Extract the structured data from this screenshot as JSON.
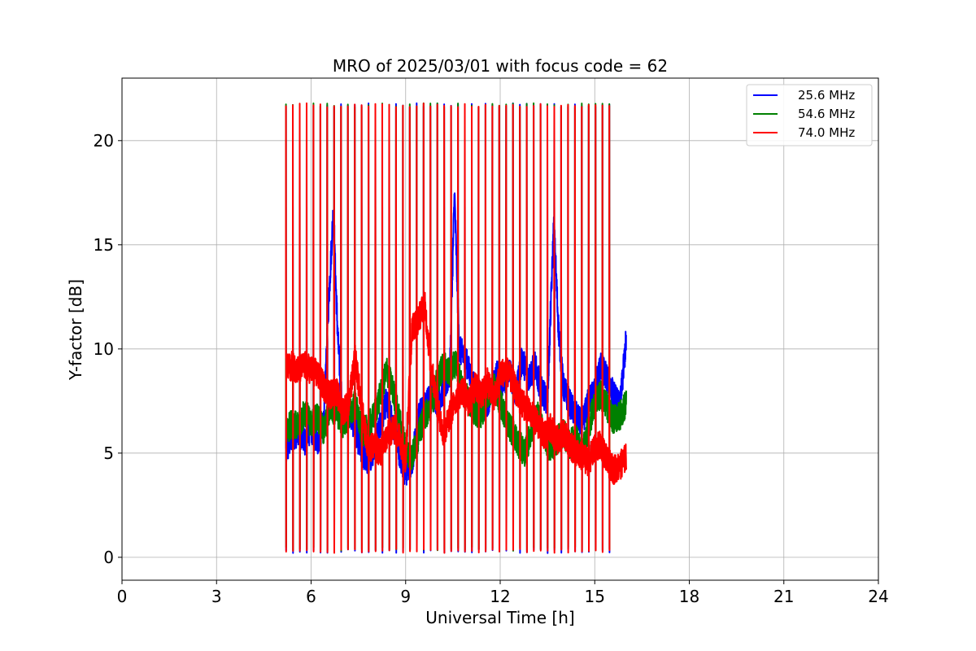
{
  "chart_data": {
    "type": "line",
    "title": "MRO of 2025/03/01 with focus code = 62",
    "xlabel": "Universal Time [h]",
    "ylabel": "Y-factor [dB]",
    "xlim": [
      0,
      24
    ],
    "ylim": [
      -1.1,
      23.0
    ],
    "xticks": [
      0,
      3,
      6,
      9,
      12,
      15,
      18,
      21,
      24
    ],
    "yticks": [
      0,
      5,
      10,
      15,
      20
    ],
    "grid": true,
    "legend_position": "top-right",
    "cal_cycle": {
      "start_h": 5.2,
      "period_h": 0.2183,
      "count": 49,
      "high_db": 21.7,
      "low_db": 0.2
    },
    "series": [
      {
        "name": "25.6 MHz",
        "color": "#0000ff",
        "x": [
          5.2,
          5.4,
          5.6,
          5.8,
          6.0,
          6.2,
          6.4,
          6.55,
          6.7,
          6.85,
          7.0,
          7.2,
          7.4,
          7.6,
          7.8,
          8.0,
          8.2,
          8.4,
          8.6,
          8.8,
          9.0,
          9.2,
          9.4,
          9.6,
          9.8,
          10.0,
          10.2,
          10.4,
          10.55,
          10.7,
          10.9,
          11.1,
          11.3,
          11.5,
          11.7,
          11.9,
          12.1,
          12.3,
          12.5,
          12.7,
          12.9,
          13.1,
          13.3,
          13.5,
          13.7,
          13.85,
          14.0,
          14.2,
          14.4,
          14.6,
          14.8,
          15.0,
          15.2,
          15.4,
          15.6,
          15.8,
          16.0
        ],
        "y": [
          5.0,
          5.8,
          6.0,
          5.6,
          6.2,
          5.5,
          6.5,
          12.0,
          16.5,
          10.5,
          6.8,
          7.0,
          6.2,
          5.0,
          4.6,
          5.2,
          6.5,
          7.5,
          6.4,
          5.0,
          4.0,
          4.5,
          6.8,
          7.2,
          7.8,
          7.5,
          8.0,
          8.8,
          17.5,
          10.0,
          9.5,
          8.5,
          8.0,
          7.2,
          7.8,
          8.8,
          8.4,
          9.0,
          7.8,
          9.5,
          8.6,
          9.2,
          8.0,
          7.5,
          16.0,
          11.0,
          8.2,
          7.4,
          6.8,
          6.4,
          7.5,
          8.0,
          9.2,
          8.6,
          7.8,
          7.2,
          10.5
        ]
      },
      {
        "name": "54.6 MHz",
        "color": "#008000",
        "x": [
          5.2,
          5.4,
          5.6,
          5.8,
          6.0,
          6.2,
          6.4,
          6.6,
          6.8,
          7.0,
          7.2,
          7.4,
          7.6,
          7.8,
          8.0,
          8.2,
          8.4,
          8.6,
          8.8,
          9.0,
          9.2,
          9.4,
          9.6,
          9.8,
          10.0,
          10.2,
          10.4,
          10.6,
          10.8,
          11.0,
          11.2,
          11.4,
          11.6,
          11.8,
          12.0,
          12.2,
          12.4,
          12.6,
          12.8,
          13.0,
          13.2,
          13.4,
          13.6,
          13.8,
          14.0,
          14.2,
          14.4,
          14.6,
          14.8,
          15.0,
          15.2,
          15.4,
          15.6,
          15.8,
          16.0
        ],
        "y": [
          6.0,
          6.5,
          6.2,
          7.0,
          6.4,
          6.8,
          6.0,
          7.2,
          7.0,
          6.4,
          6.8,
          7.4,
          6.0,
          6.2,
          6.8,
          7.8,
          9.0,
          8.0,
          6.6,
          5.2,
          4.8,
          5.8,
          6.8,
          7.2,
          8.5,
          9.2,
          8.8,
          9.4,
          8.0,
          7.6,
          7.0,
          6.8,
          7.8,
          8.2,
          7.4,
          6.6,
          6.0,
          5.4,
          5.0,
          6.2,
          6.8,
          5.8,
          5.2,
          5.6,
          6.0,
          5.4,
          5.8,
          5.0,
          6.2,
          7.4,
          7.8,
          7.2,
          6.6,
          6.8,
          7.4
        ]
      },
      {
        "name": "74.0 MHz",
        "color": "#ff0000",
        "x": [
          5.2,
          5.4,
          5.6,
          5.8,
          6.0,
          6.2,
          6.4,
          6.6,
          6.8,
          7.0,
          7.2,
          7.4,
          7.6,
          7.8,
          8.0,
          8.2,
          8.4,
          8.6,
          8.8,
          9.0,
          9.2,
          9.4,
          9.6,
          9.8,
          10.0,
          10.2,
          10.4,
          10.6,
          10.8,
          11.0,
          11.2,
          11.4,
          11.6,
          11.8,
          12.0,
          12.2,
          12.4,
          12.6,
          12.8,
          13.0,
          13.2,
          13.4,
          13.6,
          13.8,
          14.0,
          14.2,
          14.4,
          14.6,
          14.8,
          15.0,
          15.2,
          15.4,
          15.6,
          15.8,
          16.0
        ],
        "y": [
          9.0,
          9.2,
          9.0,
          9.2,
          9.0,
          8.8,
          8.2,
          7.8,
          8.0,
          7.0,
          7.4,
          9.6,
          7.2,
          5.2,
          5.4,
          5.0,
          5.8,
          6.2,
          5.8,
          4.6,
          11.0,
          11.4,
          12.2,
          9.2,
          7.4,
          5.8,
          6.8,
          7.6,
          8.0,
          7.4,
          8.2,
          7.8,
          8.4,
          7.6,
          8.8,
          9.0,
          8.4,
          7.6,
          7.2,
          6.8,
          6.4,
          5.8,
          6.2,
          5.6,
          6.0,
          5.4,
          5.0,
          4.8,
          4.6,
          5.2,
          5.4,
          4.6,
          4.2,
          4.4,
          4.8
        ]
      }
    ]
  }
}
